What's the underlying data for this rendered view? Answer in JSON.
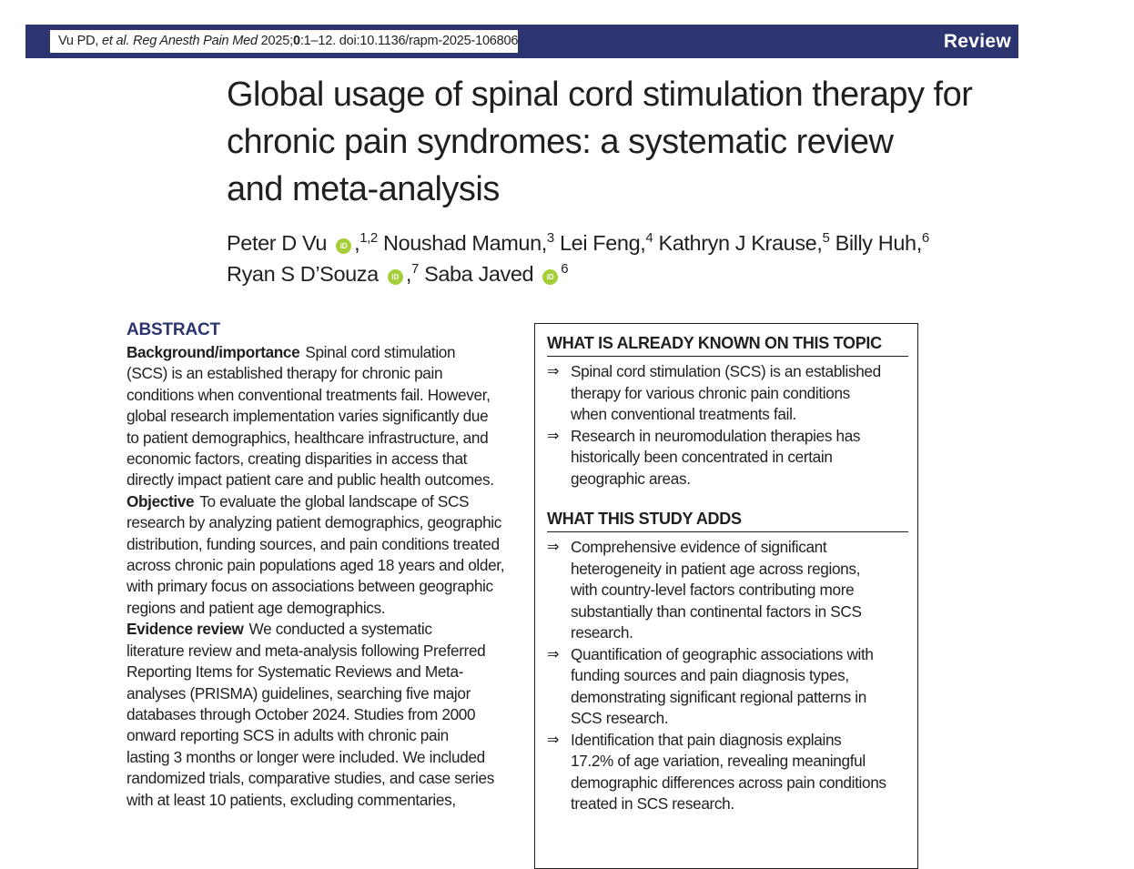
{
  "header": {
    "citation_authors": "Vu PD, ",
    "citation_etal": "et al.",
    "citation_journal": " Reg Anesth Pain Med",
    "citation_year": " 2025;",
    "citation_volume": "0",
    "citation_rest": ":1–12. doi:10.1136/rapm-2025-106806",
    "section_label": "Review",
    "banner_color": "#2c3570"
  },
  "title_lines": [
    "Global usage of spinal cord stimulation therapy for",
    "chronic pain syndromes: a systematic review",
    "and meta-analysis"
  ],
  "authors": {
    "a1_name": "Peter D Vu",
    "a1_sup": "1,2",
    "a2_name": "Noushad Mamun,",
    "a2_sup": "3",
    "a3_name": "Lei Feng,",
    "a3_sup": "4",
    "a4_name": "Kathryn J Krause,",
    "a4_sup": "5",
    "a5_name": "Billy Huh,",
    "a5_sup": "6",
    "a6_name": "Ryan S D’Souza",
    "a6_sup": "7",
    "a7_name": "Saba Javed",
    "a7_sup": "6",
    "orcid_text": "iD",
    "orcid_color": "#a6ce39"
  },
  "abstract": {
    "heading": "ABSTRACT",
    "background_label": "Background/importance",
    "background_lines": [
      "Spinal cord stimulation",
      "(SCS) is an established therapy for chronic pain",
      "conditions when conventional treatments fail. However,",
      "global research implementation varies significantly due",
      "to patient demographics, healthcare infrastructure, and",
      "economic factors, creating disparities in access that",
      "directly impact patient care and public health outcomes."
    ],
    "objective_label": "Objective",
    "objective_lines": [
      "To evaluate the global landscape of SCS",
      "research by analyzing patient demographics, geographic",
      "distribution, funding sources, and pain conditions treated",
      "across chronic pain populations aged 18 years and older,",
      "with primary focus on associations between geographic",
      "regions and patient age demographics."
    ],
    "evidence_label": "Evidence review",
    "evidence_lines": [
      "We conducted a systematic",
      "literature review and meta-analysis following Preferred",
      "Reporting Items for Systematic Reviews and Meta-",
      "analyses (PRISMA) guidelines, searching five major",
      "databases through October 2024. Studies from 2000",
      "onward reporting SCS in adults with chronic pain",
      "lasting 3 months or longer were included. We included",
      "randomized trials, comparative studies, and case series",
      "with at least 10 patients, excluding commentaries,"
    ]
  },
  "box": {
    "known_heading": "WHAT IS ALREADY KNOWN ON THIS TOPIC",
    "known_items": [
      [
        "Spinal cord stimulation (SCS) is an established",
        "therapy for various chronic pain conditions",
        "when conventional treatments fail."
      ],
      [
        "Research in neuromodulation therapies has",
        "historically been concentrated in certain",
        "geographic areas."
      ]
    ],
    "adds_heading": "WHAT THIS STUDY ADDS",
    "adds_items": [
      [
        "Comprehensive evidence of significant",
        "heterogeneity in patient age across regions,",
        "with country-level factors contributing more",
        "substantially than continental factors in SCS",
        "research."
      ],
      [
        "Quantification of geographic associations with",
        "funding sources and pain diagnosis types,",
        "demonstrating significant regional patterns in",
        "SCS research."
      ],
      [
        "Identification that pain diagnosis explains",
        "17.2% of age variation, revealing meaningful",
        "demographic differences across pain conditions",
        "treated in SCS research."
      ]
    ],
    "arrow_glyph": "⇒"
  }
}
